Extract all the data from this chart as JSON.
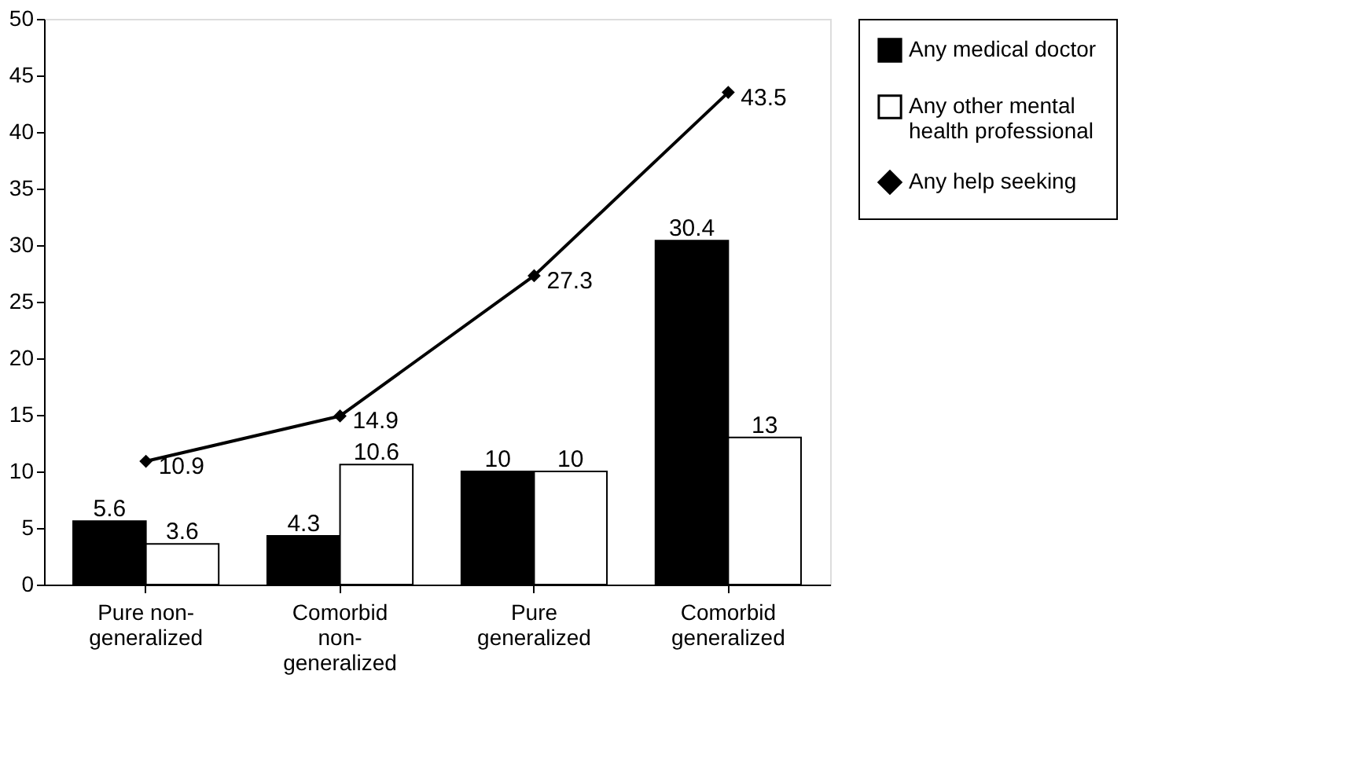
{
  "chart_data": {
    "type": "bar",
    "categories": [
      "Pure non-\ngeneralized",
      "Comorbid\nnon-\ngeneralized",
      "Pure\ngeneralized",
      "Comorbid\ngeneralized"
    ],
    "series": [
      {
        "name": "Any medical doctor",
        "color": "#000000",
        "values": [
          5.6,
          4.3,
          10,
          30.4
        ]
      },
      {
        "name": "Any other mental\nhealth professional",
        "color": "#ffffff",
        "values": [
          3.6,
          10.6,
          10,
          13
        ]
      },
      {
        "name": "Any help seeking",
        "type": "line",
        "color": "#000000",
        "marker": "diamond",
        "values": [
          10.9,
          14.9,
          27.3,
          43.5
        ]
      }
    ],
    "ylim": [
      0,
      50
    ],
    "yticks": [
      0,
      5,
      10,
      15,
      20,
      25,
      30,
      35,
      40,
      45,
      50
    ],
    "data_labels": true,
    "legend": "right",
    "grid": false
  }
}
